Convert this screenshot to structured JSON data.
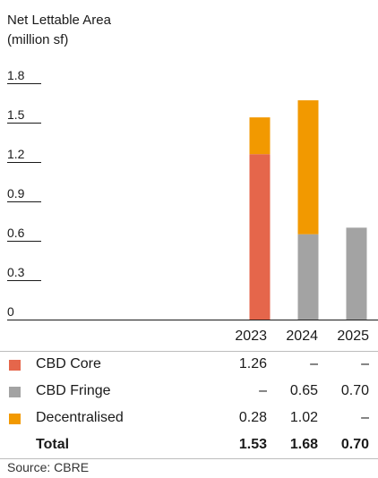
{
  "colors": {
    "CBD Core": "#E5664B",
    "CBD Fringe": "#A3A3A3",
    "Decentralised": "#F29900",
    "axis": "#1a1a1a"
  },
  "chart_data": {
    "type": "bar",
    "stacked": true,
    "title": "",
    "ylabel_line1": "Net Lettable Area",
    "ylabel_line2": "(million sf)",
    "ylim": [
      0,
      1.8
    ],
    "yticks": [
      "0",
      "0.3",
      "0.6",
      "0.9",
      "1.2",
      "1.5",
      "1.8"
    ],
    "categories": [
      "2023",
      "2024",
      "2025"
    ],
    "series": [
      {
        "name": "CBD Core",
        "values": [
          1.26,
          0,
          0
        ],
        "labels": [
          "1.26",
          "–",
          "–"
        ]
      },
      {
        "name": "CBD Fringe",
        "values": [
          0,
          0.65,
          0.7
        ],
        "labels": [
          "–",
          "0.65",
          "0.70"
        ]
      },
      {
        "name": "Decentralised",
        "values": [
          0.28,
          1.02,
          0
        ],
        "labels": [
          "0.28",
          "1.02",
          "–"
        ]
      }
    ],
    "total_label": "Total",
    "totals": [
      "1.53",
      "1.68",
      "0.70"
    ],
    "source": "Source: CBRE"
  }
}
